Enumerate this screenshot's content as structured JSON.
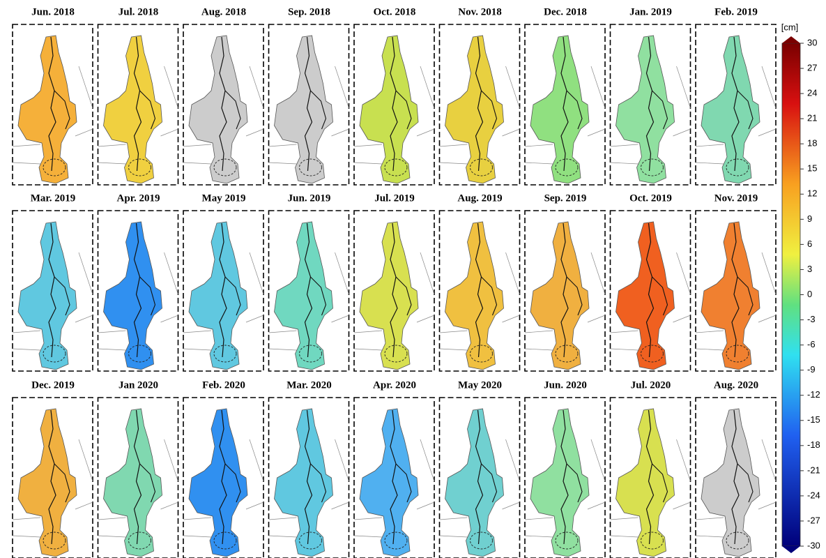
{
  "panels": [
    {
      "title": "Jun. 2018",
      "color": "#f5b03a"
    },
    {
      "title": "Jul. 2018",
      "color": "#f0d040"
    },
    {
      "title": "Aug. 2018",
      "color": "#cccccc"
    },
    {
      "title": "Sep. 2018",
      "color": "#cccccc"
    },
    {
      "title": "Oct. 2018",
      "color": "#c8e050"
    },
    {
      "title": "Nov. 2018",
      "color": "#e8d040"
    },
    {
      "title": "Dec. 2018",
      "color": "#90e080"
    },
    {
      "title": "Jan. 2019",
      "color": "#90e0a0"
    },
    {
      "title": "Feb. 2019",
      "color": "#80d8b0"
    },
    {
      "title": "Mar. 2019",
      "color": "#60c8e0"
    },
    {
      "title": "Apr. 2019",
      "color": "#3090f0"
    },
    {
      "title": "May 2019",
      "color": "#60c8e0"
    },
    {
      "title": "Jun. 2019",
      "color": "#70d8c0"
    },
    {
      "title": "Jul. 2019",
      "color": "#d8e050"
    },
    {
      "title": "Aug. 2019",
      "color": "#f0c040"
    },
    {
      "title": "Sep. 2019",
      "color": "#f0b040"
    },
    {
      "title": "Oct. 2019",
      "color": "#f06020"
    },
    {
      "title": "Nov. 2019",
      "color": "#f08030"
    },
    {
      "title": "Dec. 2019",
      "color": "#f0b040"
    },
    {
      "title": "Jan 2020",
      "color": "#80d8b0"
    },
    {
      "title": "Feb. 2020",
      "color": "#3090f0"
    },
    {
      "title": "Mar. 2020",
      "color": "#60c8e0"
    },
    {
      "title": "Apr. 2020",
      "color": "#50b0f0"
    },
    {
      "title": "May 2020",
      "color": "#70d0d0"
    },
    {
      "title": "Jun. 2020",
      "color": "#90e0a0"
    },
    {
      "title": "Jul. 2020",
      "color": "#d8e050"
    },
    {
      "title": "Aug. 2020",
      "color": "#cccccc"
    }
  ],
  "colorbar": {
    "unit": "[cm]",
    "range": [
      -30,
      30
    ],
    "ticks": [
      30,
      27,
      24,
      21,
      18,
      15,
      12,
      9,
      6,
      3,
      0,
      -3,
      -6,
      -9,
      -12,
      -15,
      -18,
      -21,
      -24,
      -27,
      -30
    ]
  }
}
